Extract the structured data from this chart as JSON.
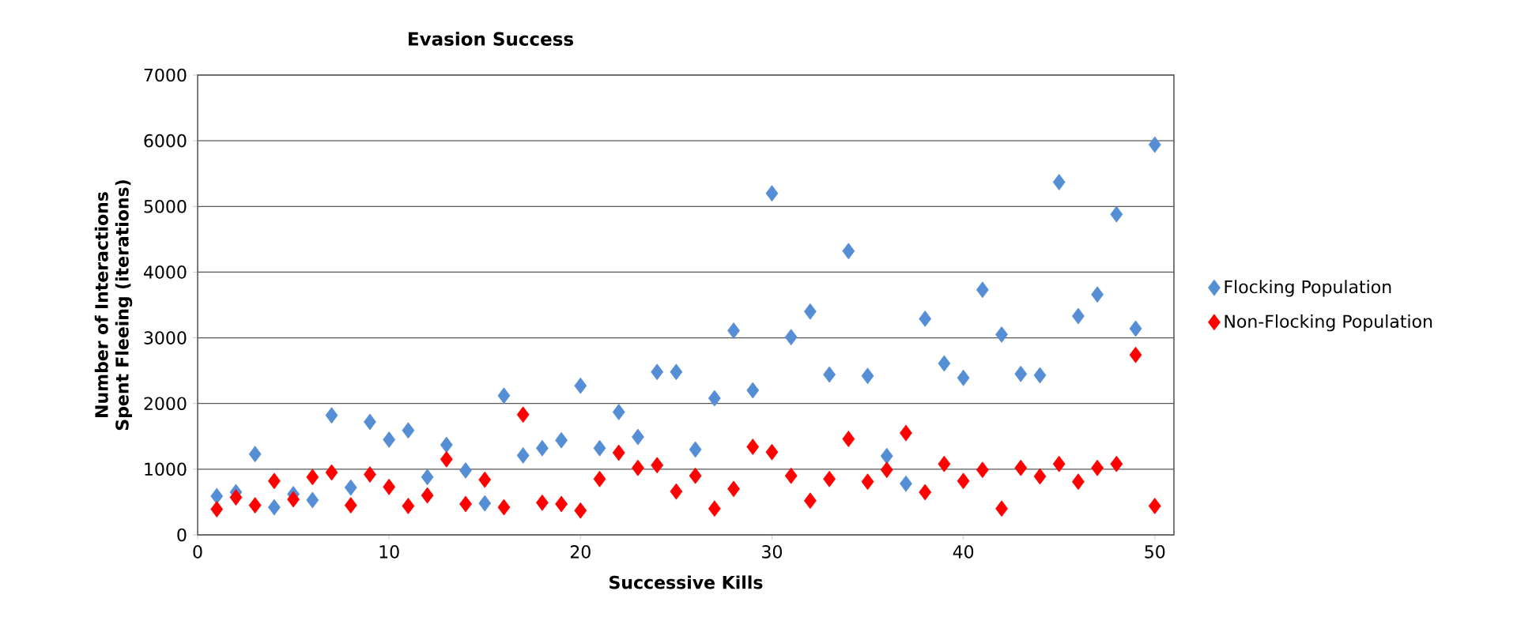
{
  "chart_data": {
    "type": "scatter",
    "title": "Evasion Success",
    "xlabel": "Successive Kills",
    "ylabel": "Number of Interactions Spent Fleeing (iterations)",
    "x": [
      1,
      2,
      3,
      4,
      5,
      6,
      7,
      8,
      9,
      10,
      11,
      12,
      13,
      14,
      15,
      16,
      17,
      18,
      19,
      20,
      21,
      22,
      23,
      24,
      25,
      26,
      27,
      28,
      29,
      30,
      31,
      32,
      33,
      34,
      35,
      36,
      37,
      38,
      39,
      40,
      41,
      42,
      43,
      44,
      45,
      46,
      47,
      48,
      49,
      50
    ],
    "series": [
      {
        "name": "Flocking Population",
        "color": "#558ed5",
        "values": [
          590,
          650,
          1230,
          420,
          620,
          530,
          1820,
          720,
          1720,
          1450,
          1590,
          880,
          1370,
          980,
          480,
          2120,
          1210,
          1320,
          1440,
          2270,
          1320,
          1870,
          1490,
          2480,
          2480,
          1300,
          2080,
          3110,
          2200,
          5200,
          3010,
          3400,
          2440,
          4320,
          2420,
          1200,
          780,
          3290,
          2610,
          2390,
          3730,
          3050,
          2450,
          2430,
          5370,
          3330,
          3660,
          4880,
          3140,
          5940
        ]
      },
      {
        "name": "Non-Flocking Population",
        "color": "#ff0000",
        "values": [
          390,
          570,
          450,
          820,
          540,
          880,
          950,
          450,
          920,
          730,
          440,
          600,
          1150,
          470,
          840,
          420,
          1830,
          490,
          470,
          370,
          850,
          1250,
          1020,
          1060,
          660,
          900,
          400,
          700,
          1340,
          1260,
          900,
          520,
          850,
          1460,
          810,
          990,
          1550,
          650,
          1080,
          820,
          990,
          400,
          1020,
          890,
          1080,
          810,
          1020,
          1080,
          2740,
          440
        ]
      }
    ],
    "xlim": [
      0,
      51
    ],
    "xticks": [
      0,
      10,
      20,
      30,
      40,
      50
    ],
    "ylim": [
      0,
      7000
    ],
    "yticks": [
      0,
      1000,
      2000,
      3000,
      4000,
      5000,
      6000,
      7000
    ],
    "grid": "y",
    "legend": "right",
    "marker": "diamond"
  }
}
